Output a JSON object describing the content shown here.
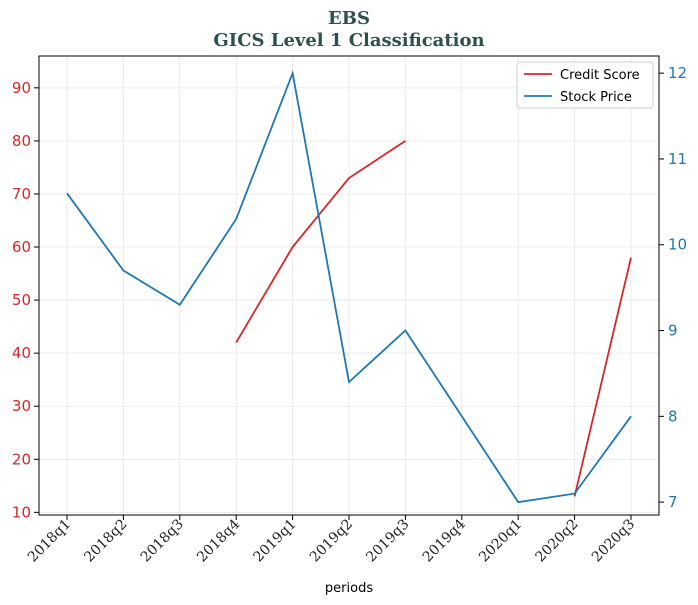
{
  "chart_data": {
    "type": "line",
    "title": [
      "EBS",
      "GICS Level 1 Classification"
    ],
    "xlabel": "periods",
    "categories": [
      "2018q1",
      "2018q2",
      "2018q3",
      "2018q4",
      "2019q1",
      "2019q2",
      "2019q3",
      "2019q4",
      "2020q1",
      "2020q2",
      "2020q3"
    ],
    "left_axis": {
      "ylim": [
        9.5,
        96
      ],
      "ticks": [
        10,
        20,
        30,
        40,
        50,
        60,
        70,
        80,
        90
      ],
      "color": "#d62728"
    },
    "right_axis": {
      "ylim": [
        6.85,
        12.2
      ],
      "ticks": [
        7,
        8,
        9,
        10,
        11,
        12
      ],
      "color": "#1f77b4"
    },
    "grid": true,
    "legend_position": "top-right",
    "series": [
      {
        "name": "Credit Score",
        "axis": "left",
        "color": "#d62728",
        "values": [
          null,
          null,
          null,
          42,
          60,
          73,
          80,
          null,
          null,
          13,
          58
        ]
      },
      {
        "name": "Stock Price",
        "axis": "right",
        "color": "#1f77b4",
        "values": [
          10.6,
          9.7,
          9.3,
          10.3,
          12.0,
          8.4,
          9.0,
          8.0,
          7.0,
          7.1,
          8.0
        ]
      }
    ]
  }
}
